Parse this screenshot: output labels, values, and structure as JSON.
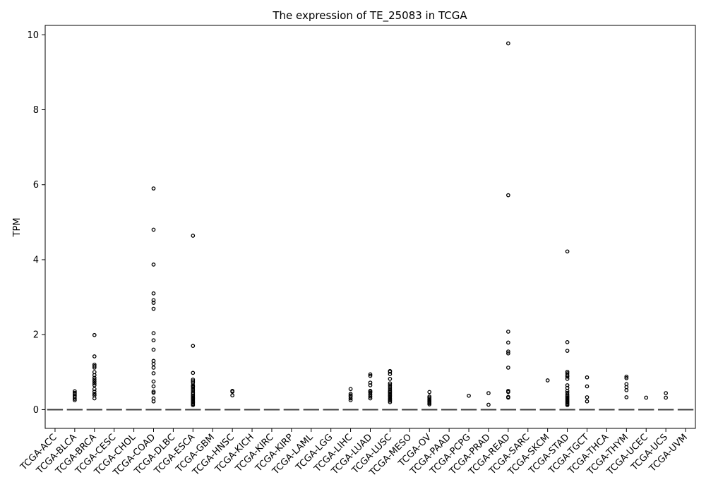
{
  "chart_data": {
    "type": "box",
    "title": "The expression of TE_25083 in TCGA",
    "xlabel": "",
    "ylabel": "TPM",
    "ylim": [
      -0.5,
      10.25
    ],
    "yticks": [
      0,
      2,
      4,
      6,
      8,
      10
    ],
    "grid": false,
    "categories": [
      "TCGA-ACC",
      "TCGA-BLCA",
      "TCGA-BRCA",
      "TCGA-CESC",
      "TCGA-CHOL",
      "TCGA-COAD",
      "TCGA-DLBC",
      "TCGA-ESCA",
      "TCGA-GBM",
      "TCGA-HNSC",
      "TCGA-KICH",
      "TCGA-KIRC",
      "TCGA-KIRP",
      "TCGA-LAML",
      "TCGA-LGG",
      "TCGA-LIHC",
      "TCGA-LUAD",
      "TCGA-LUSC",
      "TCGA-MESO",
      "TCGA-OV",
      "TCGA-PAAD",
      "TCGA-PCPG",
      "TCGA-PRAD",
      "TCGA-READ",
      "TCGA-SARC",
      "TCGA-SKCM",
      "TCGA-STAD",
      "TCGA-TGCT",
      "TCGA-THCA",
      "TCGA-THYM",
      "TCGA-UCEC",
      "TCGA-UCS",
      "TCGA-UVM"
    ],
    "median": [
      0,
      0,
      0,
      0,
      0,
      0,
      0,
      0,
      0,
      0,
      0,
      0,
      0,
      0,
      0,
      0,
      0,
      0,
      0,
      0,
      0,
      0,
      0,
      0,
      0,
      0,
      0,
      0,
      0,
      0,
      0,
      0,
      0
    ],
    "outliers": [
      [],
      [
        0.49,
        0.45,
        0.42,
        0.38,
        0.34,
        0.29,
        0.25
      ],
      [
        1.99,
        1.42,
        1.2,
        1.16,
        1.12,
        1.0,
        0.92,
        0.85,
        0.8,
        0.75,
        0.7,
        0.65,
        0.55,
        0.48,
        0.42,
        0.38,
        0.3
      ],
      [],
      [],
      [
        5.9,
        4.8,
        3.87,
        3.1,
        2.92,
        2.85,
        2.69,
        2.04,
        1.85,
        1.6,
        1.3,
        1.22,
        1.12,
        0.97,
        0.75,
        0.62,
        0.48,
        0.45,
        0.3,
        0.22
      ],
      [],
      [
        4.64,
        1.7,
        0.98,
        0.8,
        0.76,
        0.72,
        0.65,
        0.62,
        0.6,
        0.55,
        0.5,
        0.45,
        0.42,
        0.38,
        0.35,
        0.32,
        0.3,
        0.28,
        0.25,
        0.22,
        0.2,
        0.18,
        0.15,
        0.12
      ],
      [],
      [
        0.5,
        0.48,
        0.38
      ],
      [],
      [],
      [],
      [],
      [],
      [
        0.55,
        0.42,
        0.38,
        0.35,
        0.3,
        0.25
      ],
      [
        0.94,
        0.9,
        0.72,
        0.65,
        0.5,
        0.48,
        0.45,
        0.4,
        0.35,
        0.3
      ],
      [
        1.03,
        1.01,
        0.95,
        0.82,
        0.7,
        0.65,
        0.6,
        0.55,
        0.5,
        0.47,
        0.44,
        0.4,
        0.37,
        0.34,
        0.3,
        0.27,
        0.24,
        0.2
      ],
      [],
      [
        0.47,
        0.35,
        0.32,
        0.28,
        0.25,
        0.22,
        0.2,
        0.17,
        0.14
      ],
      [],
      [
        0.37
      ],
      [
        0.44,
        0.13
      ],
      [
        9.77,
        5.72,
        2.08,
        1.79,
        1.55,
        1.5,
        1.12,
        0.5,
        0.47,
        0.34,
        0.32
      ],
      [],
      [
        0.78
      ],
      [
        4.22,
        1.8,
        1.57,
        1.01,
        0.97,
        0.92,
        0.88,
        0.82,
        0.65,
        0.58,
        0.5,
        0.45,
        0.4,
        0.36,
        0.33,
        0.3,
        0.27,
        0.24,
        0.21,
        0.18,
        0.15,
        0.12
      ],
      [
        0.86,
        0.62,
        0.33,
        0.22
      ],
      [],
      [
        0.88,
        0.84,
        0.68,
        0.6,
        0.52,
        0.33
      ],
      [
        0.32
      ],
      [
        0.44,
        0.32
      ],
      []
    ]
  }
}
